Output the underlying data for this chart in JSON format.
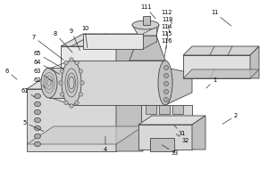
{
  "figsize": [
    3.0,
    2.0
  ],
  "dpi": 100,
  "bg": "white",
  "lc": "#444444",
  "lc2": "#666666",
  "fill_light": "#d8d8d8",
  "fill_mid": "#c0c0c0",
  "fill_dark": "#aaaaaa",
  "lw": 0.6,
  "annotations": [
    [
      "111",
      163,
      8,
      175,
      22
    ],
    [
      "112",
      187,
      14,
      193,
      28
    ],
    [
      "11",
      240,
      14,
      260,
      30
    ],
    [
      "113",
      187,
      22,
      190,
      38
    ],
    [
      "114",
      187,
      30,
      188,
      47
    ],
    [
      "115",
      187,
      38,
      186,
      56
    ],
    [
      "116",
      187,
      46,
      184,
      65
    ],
    [
      "7",
      38,
      42,
      72,
      68
    ],
    [
      "8",
      62,
      38,
      82,
      60
    ],
    [
      "9",
      80,
      35,
      90,
      58
    ],
    [
      "10",
      95,
      32,
      98,
      55
    ],
    [
      "65",
      42,
      60,
      72,
      78
    ],
    [
      "6",
      8,
      80,
      20,
      90
    ],
    [
      "64",
      42,
      70,
      68,
      84
    ],
    [
      "63",
      42,
      80,
      60,
      92
    ],
    [
      "62",
      42,
      90,
      52,
      100
    ],
    [
      "61",
      28,
      102,
      40,
      110
    ],
    [
      "1",
      240,
      90,
      230,
      100
    ],
    [
      "2",
      264,
      130,
      248,
      140
    ],
    [
      "5",
      28,
      138,
      50,
      148
    ],
    [
      "4",
      118,
      168,
      118,
      152
    ],
    [
      "31",
      204,
      150,
      194,
      140
    ],
    [
      "32",
      208,
      158,
      196,
      150
    ],
    [
      "33",
      196,
      172,
      180,
      162
    ]
  ]
}
